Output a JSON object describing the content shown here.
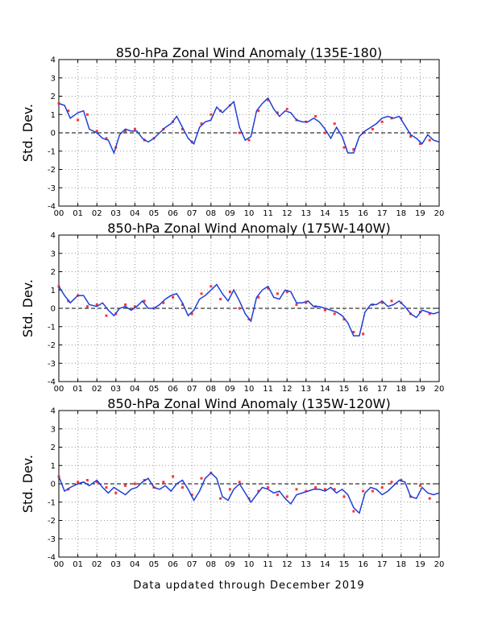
{
  "footer": "Data updated through December 2019",
  "colors": {
    "obs": "#ff3333",
    "smooth": "#1f3fd6",
    "grid": "#999999",
    "zero": "#000000"
  },
  "chart_data": [
    {
      "type": "scatter",
      "title": "850-hPa Zonal Wind Anomaly (135E-180)",
      "ylabel": "Std. Dev.",
      "xlabel": "",
      "xlim": [
        2000,
        2020
      ],
      "ylim": [
        -4,
        4
      ],
      "xticks": [
        "00",
        "01",
        "02",
        "03",
        "04",
        "05",
        "06",
        "07",
        "08",
        "09",
        "10",
        "11",
        "12",
        "13",
        "14",
        "15",
        "16",
        "17",
        "18",
        "19",
        "20"
      ],
      "yticks": [
        "-4",
        "-3",
        "-2",
        "-1",
        "0",
        "1",
        "2",
        "3",
        "4"
      ],
      "grid": true,
      "series": [
        {
          "type": "scatter",
          "x": [
            2000.0,
            2000.5,
            2001.0,
            2001.5,
            2002.0,
            2002.5,
            2003.0,
            2003.5,
            2004.0,
            2004.5,
            2005.0,
            2005.5,
            2006.0,
            2006.5,
            2007.0,
            2007.5,
            2008.0,
            2008.5,
            2009.0,
            2009.5,
            2010.0,
            2010.5,
            2011.0,
            2011.5,
            2012.0,
            2012.5,
            2013.0,
            2013.5,
            2014.0,
            2014.5,
            2015.0,
            2015.5,
            2016.0,
            2016.5,
            2017.0,
            2017.5,
            2018.0,
            2018.5,
            2019.0,
            2019.5
          ],
          "y": [
            1.6,
            1.2,
            0.7,
            1.0,
            0.1,
            -0.3,
            -0.8,
            0.1,
            0.2,
            -0.4,
            -0.3,
            0.2,
            0.6,
            0.2,
            -0.5,
            0.5,
            1.0,
            1.2,
            1.5,
            0.0,
            -0.4,
            1.2,
            1.8,
            1.1,
            1.3,
            0.7,
            0.6,
            0.9,
            0.0,
            0.5,
            -0.8,
            -0.9,
            0.0,
            0.2,
            0.6,
            0.8,
            0.8,
            -0.2,
            -0.6,
            -0.4
          ]
        },
        {
          "type": "line",
          "x": [
            2000.0,
            2000.3,
            2000.6,
            2001.0,
            2001.3,
            2001.6,
            2002.0,
            2002.3,
            2002.6,
            2002.9,
            2003.2,
            2003.5,
            2003.8,
            2004.1,
            2004.4,
            2004.7,
            2005.0,
            2005.3,
            2005.6,
            2005.9,
            2006.2,
            2006.5,
            2006.8,
            2007.1,
            2007.4,
            2007.7,
            2008.0,
            2008.3,
            2008.6,
            2008.9,
            2009.2,
            2009.5,
            2009.8,
            2010.1,
            2010.4,
            2010.7,
            2011.0,
            2011.3,
            2011.6,
            2011.9,
            2012.2,
            2012.5,
            2012.8,
            2013.1,
            2013.4,
            2013.7,
            2014.0,
            2014.3,
            2014.6,
            2014.9,
            2015.2,
            2015.5,
            2015.8,
            2016.1,
            2016.4,
            2016.7,
            2017.0,
            2017.3,
            2017.6,
            2017.9,
            2018.2,
            2018.5,
            2018.8,
            2019.1,
            2019.4,
            2019.7,
            2020.0
          ],
          "y": [
            1.6,
            1.5,
            0.8,
            1.1,
            1.2,
            0.2,
            0.0,
            -0.3,
            -0.4,
            -1.1,
            -0.1,
            0.2,
            0.1,
            0.1,
            -0.3,
            -0.5,
            -0.3,
            0.0,
            0.3,
            0.5,
            0.9,
            0.3,
            -0.3,
            -0.6,
            0.3,
            0.6,
            0.7,
            1.4,
            1.1,
            1.4,
            1.7,
            0.3,
            -0.4,
            -0.2,
            1.2,
            1.6,
            1.9,
            1.3,
            0.9,
            1.2,
            1.1,
            0.7,
            0.6,
            0.6,
            0.8,
            0.6,
            0.2,
            -0.3,
            0.3,
            -0.2,
            -1.1,
            -1.1,
            -0.2,
            0.1,
            0.3,
            0.5,
            0.8,
            0.9,
            0.8,
            0.9,
            0.4,
            -0.1,
            -0.3,
            -0.6,
            -0.1,
            -0.4,
            -0.5
          ]
        }
      ]
    },
    {
      "type": "scatter",
      "title": "850-hPa Zonal Wind Anomaly (175W-140W)",
      "ylabel": "Std. Dev.",
      "xlabel": "",
      "xlim": [
        2000,
        2020
      ],
      "ylim": [
        -4,
        4
      ],
      "xticks": [
        "00",
        "01",
        "02",
        "03",
        "04",
        "05",
        "06",
        "07",
        "08",
        "09",
        "10",
        "11",
        "12",
        "13",
        "14",
        "15",
        "16",
        "17",
        "18",
        "19",
        "20"
      ],
      "yticks": [
        "-4",
        "-3",
        "-2",
        "-1",
        "0",
        "1",
        "2",
        "3",
        "4"
      ],
      "grid": true,
      "series": [
        {
          "type": "scatter",
          "x": [
            2000.0,
            2000.5,
            2001.0,
            2001.5,
            2002.0,
            2002.5,
            2003.0,
            2003.5,
            2004.0,
            2004.5,
            2005.0,
            2005.5,
            2006.0,
            2006.5,
            2007.0,
            2007.5,
            2008.0,
            2008.5,
            2009.0,
            2009.5,
            2010.0,
            2010.5,
            2011.0,
            2011.5,
            2012.0,
            2012.5,
            2013.0,
            2013.5,
            2014.0,
            2014.5,
            2015.0,
            2015.5,
            2016.0,
            2016.5,
            2017.0,
            2017.5,
            2018.0,
            2018.5,
            2019.0,
            2019.5
          ],
          "y": [
            1.2,
            0.4,
            0.7,
            0.1,
            0.2,
            -0.4,
            -0.3,
            0.2,
            0.1,
            0.4,
            0.0,
            0.3,
            0.6,
            0.2,
            -0.3,
            0.8,
            1.2,
            0.5,
            0.9,
            0.0,
            -0.6,
            0.6,
            1.1,
            0.8,
            0.9,
            0.2,
            0.3,
            0.1,
            -0.1,
            -0.3,
            -0.6,
            -1.3,
            -1.4,
            0.2,
            0.3,
            0.4,
            0.3,
            -0.3,
            -0.2,
            -0.3
          ]
        },
        {
          "type": "line",
          "x": [
            2000.0,
            2000.3,
            2000.6,
            2001.0,
            2001.3,
            2001.6,
            2002.0,
            2002.3,
            2002.6,
            2002.9,
            2003.2,
            2003.5,
            2003.8,
            2004.1,
            2004.4,
            2004.7,
            2005.0,
            2005.3,
            2005.6,
            2005.9,
            2006.2,
            2006.5,
            2006.8,
            2007.1,
            2007.4,
            2007.7,
            2008.0,
            2008.3,
            2008.6,
            2008.9,
            2009.2,
            2009.5,
            2009.8,
            2010.1,
            2010.4,
            2010.7,
            2011.0,
            2011.3,
            2011.6,
            2011.9,
            2012.2,
            2012.5,
            2012.8,
            2013.1,
            2013.4,
            2013.7,
            2014.0,
            2014.3,
            2014.6,
            2014.9,
            2015.2,
            2015.5,
            2015.8,
            2016.1,
            2016.4,
            2016.7,
            2017.0,
            2017.3,
            2017.6,
            2017.9,
            2018.2,
            2018.5,
            2018.8,
            2019.1,
            2019.4,
            2019.7,
            2020.0
          ],
          "y": [
            1.2,
            0.7,
            0.3,
            0.7,
            0.7,
            0.2,
            0.1,
            0.3,
            -0.1,
            -0.4,
            0.0,
            0.1,
            -0.1,
            0.1,
            0.4,
            0.0,
            0.0,
            0.2,
            0.5,
            0.7,
            0.8,
            0.3,
            -0.4,
            -0.1,
            0.5,
            0.7,
            1.0,
            1.3,
            0.8,
            0.4,
            1.0,
            0.4,
            -0.3,
            -0.7,
            0.6,
            1.0,
            1.2,
            0.6,
            0.5,
            1.0,
            0.9,
            0.3,
            0.3,
            0.4,
            0.1,
            0.1,
            0.0,
            -0.1,
            -0.2,
            -0.4,
            -0.8,
            -1.5,
            -1.5,
            -0.2,
            0.2,
            0.2,
            0.4,
            0.1,
            0.2,
            0.4,
            0.1,
            -0.3,
            -0.5,
            -0.1,
            -0.2,
            -0.3,
            -0.2
          ]
        }
      ]
    },
    {
      "type": "scatter",
      "title": "850-hPa Zonal Wind Anomaly (135W-120W)",
      "ylabel": "Std. Dev.",
      "xlabel": "",
      "xlim": [
        2000,
        2020
      ],
      "ylim": [
        -4,
        4
      ],
      "xticks": [
        "00",
        "01",
        "02",
        "03",
        "04",
        "05",
        "06",
        "07",
        "08",
        "09",
        "10",
        "11",
        "12",
        "13",
        "14",
        "15",
        "16",
        "17",
        "18",
        "19",
        "20"
      ],
      "yticks": [
        "-4",
        "-3",
        "-2",
        "-1",
        "0",
        "1",
        "2",
        "3",
        "4"
      ],
      "grid": true,
      "series": [
        {
          "type": "scatter",
          "x": [
            2000.0,
            2000.5,
            2001.0,
            2001.5,
            2002.0,
            2002.5,
            2003.0,
            2003.5,
            2004.0,
            2004.5,
            2005.0,
            2005.5,
            2006.0,
            2006.5,
            2007.0,
            2007.5,
            2008.0,
            2008.5,
            2009.0,
            2009.5,
            2010.0,
            2010.5,
            2011.0,
            2011.5,
            2012.0,
            2012.5,
            2013.0,
            2013.5,
            2014.0,
            2014.5,
            2015.0,
            2015.5,
            2016.0,
            2016.5,
            2017.0,
            2017.5,
            2018.0,
            2018.5,
            2019.0,
            2019.5
          ],
          "y": [
            0.4,
            -0.3,
            0.1,
            0.2,
            0.1,
            -0.2,
            -0.5,
            -0.1,
            0.0,
            0.2,
            -0.2,
            0.1,
            0.4,
            -0.2,
            -0.6,
            0.3,
            0.6,
            -0.8,
            -0.3,
            0.1,
            -0.8,
            -0.4,
            -0.2,
            -0.6,
            -0.7,
            -0.3,
            -0.4,
            -0.2,
            -0.3,
            -0.3,
            -0.7,
            -1.5,
            -0.4,
            -0.4,
            -0.2,
            0.1,
            0.2,
            -0.7,
            -0.1,
            -0.8
          ]
        },
        {
          "type": "line",
          "x": [
            2000.0,
            2000.3,
            2000.6,
            2001.0,
            2001.3,
            2001.6,
            2002.0,
            2002.3,
            2002.6,
            2002.9,
            2003.2,
            2003.5,
            2003.8,
            2004.1,
            2004.4,
            2004.7,
            2005.0,
            2005.3,
            2005.6,
            2005.9,
            2006.2,
            2006.5,
            2006.8,
            2007.1,
            2007.4,
            2007.7,
            2008.0,
            2008.3,
            2008.6,
            2008.9,
            2009.2,
            2009.5,
            2009.8,
            2010.1,
            2010.4,
            2010.7,
            2011.0,
            2011.3,
            2011.6,
            2011.9,
            2012.2,
            2012.5,
            2012.8,
            2013.1,
            2013.4,
            2013.7,
            2014.0,
            2014.3,
            2014.6,
            2014.9,
            2015.2,
            2015.5,
            2015.8,
            2016.1,
            2016.4,
            2016.7,
            2017.0,
            2017.3,
            2017.6,
            2017.9,
            2018.2,
            2018.5,
            2018.8,
            2019.1,
            2019.4,
            2019.7,
            2020.0
          ],
          "y": [
            0.4,
            -0.4,
            -0.2,
            0.0,
            0.1,
            -0.1,
            0.2,
            -0.2,
            -0.5,
            -0.2,
            -0.4,
            -0.6,
            -0.3,
            -0.2,
            0.1,
            0.3,
            -0.2,
            -0.3,
            -0.1,
            -0.4,
            0.0,
            0.2,
            -0.3,
            -0.9,
            -0.4,
            0.3,
            0.6,
            0.3,
            -0.7,
            -0.9,
            -0.3,
            0.0,
            -0.5,
            -1.0,
            -0.6,
            -0.2,
            -0.3,
            -0.5,
            -0.4,
            -0.8,
            -1.1,
            -0.6,
            -0.5,
            -0.4,
            -0.3,
            -0.3,
            -0.4,
            -0.2,
            -0.5,
            -0.3,
            -0.6,
            -1.3,
            -1.6,
            -0.5,
            -0.2,
            -0.3,
            -0.6,
            -0.4,
            -0.1,
            0.2,
            0.1,
            -0.7,
            -0.8,
            -0.2,
            -0.5,
            -0.6,
            -0.5
          ]
        }
      ]
    }
  ]
}
